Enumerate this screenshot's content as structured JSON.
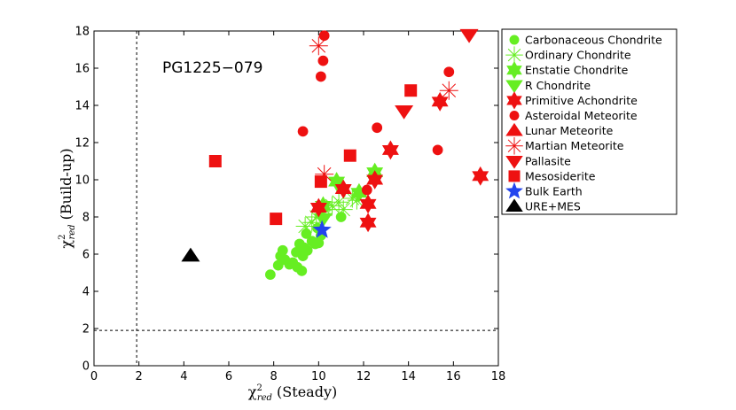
{
  "chart_data": {
    "type": "scatter",
    "title": "",
    "annotation": "PG1225−079",
    "xlabel": "χ²red (Steady)",
    "ylabel": "χ²red (Build-up)",
    "xlabel_main": "χ",
    "xlabel_sup": "2",
    "xlabel_sub": "red",
    "xlabel_rest": " (Steady)",
    "ylabel_main": "χ",
    "ylabel_sup": "2",
    "ylabel_sub": "red",
    "ylabel_rest": " (Build-up)",
    "xlim": [
      0,
      18
    ],
    "ylim": [
      0,
      18
    ],
    "xticks": [
      0,
      2,
      4,
      6,
      8,
      10,
      12,
      14,
      16,
      18
    ],
    "yticks": [
      0,
      2,
      4,
      6,
      8,
      10,
      12,
      14,
      16,
      18
    ],
    "xtick_labels": [
      "0",
      "2",
      "4",
      "6",
      "8",
      "10",
      "12",
      "14",
      "16",
      "18"
    ],
    "ytick_labels": [
      "0",
      "2",
      "4",
      "6",
      "8",
      "10",
      "12",
      "14",
      "16",
      "18"
    ],
    "grid": false,
    "reference_lines": [
      {
        "orientation": "vertical",
        "value": 1.9,
        "style": "dashed"
      },
      {
        "orientation": "horizontal",
        "value": 1.9,
        "style": "dashed"
      }
    ],
    "legend_position": "outside-right",
    "series": [
      {
        "name": "Carbonaceous Chondrite",
        "marker": "circle",
        "color": "#66ee22",
        "points": [
          [
            7.85,
            4.9
          ],
          [
            8.2,
            5.4
          ],
          [
            8.3,
            5.9
          ],
          [
            8.4,
            6.2
          ],
          [
            8.5,
            5.7
          ],
          [
            8.7,
            5.45
          ],
          [
            8.85,
            5.55
          ],
          [
            9.0,
            6.1
          ],
          [
            9.05,
            5.3
          ],
          [
            9.15,
            6.55
          ],
          [
            9.25,
            5.1
          ],
          [
            9.3,
            5.9
          ],
          [
            9.35,
            6.35
          ],
          [
            9.45,
            7.1
          ],
          [
            9.5,
            6.2
          ],
          [
            9.7,
            6.7
          ],
          [
            9.85,
            6.55
          ],
          [
            9.95,
            7.4
          ],
          [
            10.0,
            6.6
          ],
          [
            10.1,
            7.0
          ],
          [
            11.0,
            8.0
          ]
        ]
      },
      {
        "name": "Ordinary Chondrite",
        "marker": "asterisk",
        "color": "#66ee22",
        "points": [
          [
            9.4,
            7.5
          ],
          [
            9.7,
            7.7
          ],
          [
            9.9,
            8.0
          ],
          [
            10.1,
            8.3
          ],
          [
            10.3,
            8.4
          ],
          [
            10.6,
            8.6
          ],
          [
            10.9,
            8.8
          ],
          [
            11.1,
            8.4
          ],
          [
            11.5,
            9.0
          ],
          [
            11.7,
            8.9
          ]
        ]
      },
      {
        "name": "Enstatie Chondrite",
        "marker": "hexagram",
        "color": "#66ee22",
        "points": [
          [
            10.8,
            9.9
          ],
          [
            12.5,
            10.4
          ],
          [
            10.2,
            8.6
          ],
          [
            11.8,
            9.3
          ]
        ]
      },
      {
        "name": "R Chondrite",
        "marker": "triangle-down",
        "color": "#66ee22",
        "points": [
          [
            10.2,
            7.9
          ]
        ]
      },
      {
        "name": "Primitive Achondrite",
        "marker": "hexagram",
        "color": "#ee1111",
        "points": [
          [
            10.0,
            8.5
          ],
          [
            11.1,
            9.5
          ],
          [
            12.2,
            7.7
          ],
          [
            12.2,
            8.7
          ],
          [
            12.5,
            10.0
          ],
          [
            13.2,
            11.6
          ],
          [
            15.4,
            14.2
          ],
          [
            17.2,
            10.2
          ]
        ]
      },
      {
        "name": "Asteroidal Meteorite",
        "marker": "circle",
        "color": "#ee1111",
        "points": [
          [
            10.25,
            17.75
          ],
          [
            10.2,
            16.4
          ],
          [
            10.1,
            15.55
          ],
          [
            9.3,
            12.6
          ],
          [
            12.6,
            12.8
          ],
          [
            12.15,
            9.45
          ],
          [
            15.3,
            11.6
          ],
          [
            15.8,
            15.8
          ]
        ]
      },
      {
        "name": "Lunar Meteorite",
        "marker": "triangle-up",
        "color": "#ee1111",
        "points": []
      },
      {
        "name": "Martian Meteorite",
        "marker": "asterisk",
        "color": "#ee1111",
        "points": [
          [
            10.0,
            17.2
          ],
          [
            10.25,
            10.3
          ],
          [
            15.8,
            14.8
          ]
        ]
      },
      {
        "name": "Pallasite",
        "marker": "triangle-down",
        "color": "#ee1111",
        "points": [
          [
            13.8,
            13.7
          ],
          [
            16.7,
            17.8
          ]
        ]
      },
      {
        "name": "Mesosiderite",
        "marker": "square",
        "color": "#ee1111",
        "points": [
          [
            5.4,
            11.0
          ],
          [
            8.1,
            7.9
          ],
          [
            10.1,
            9.9
          ],
          [
            11.4,
            11.3
          ],
          [
            14.1,
            14.8
          ]
        ]
      },
      {
        "name": "Bulk Earth",
        "marker": "pentagram",
        "color": "#2244ee",
        "points": [
          [
            10.15,
            7.3
          ]
        ]
      },
      {
        "name": "URE+MES",
        "marker": "triangle-up",
        "color": "#000000",
        "points": [
          [
            4.3,
            5.9
          ]
        ]
      }
    ]
  }
}
